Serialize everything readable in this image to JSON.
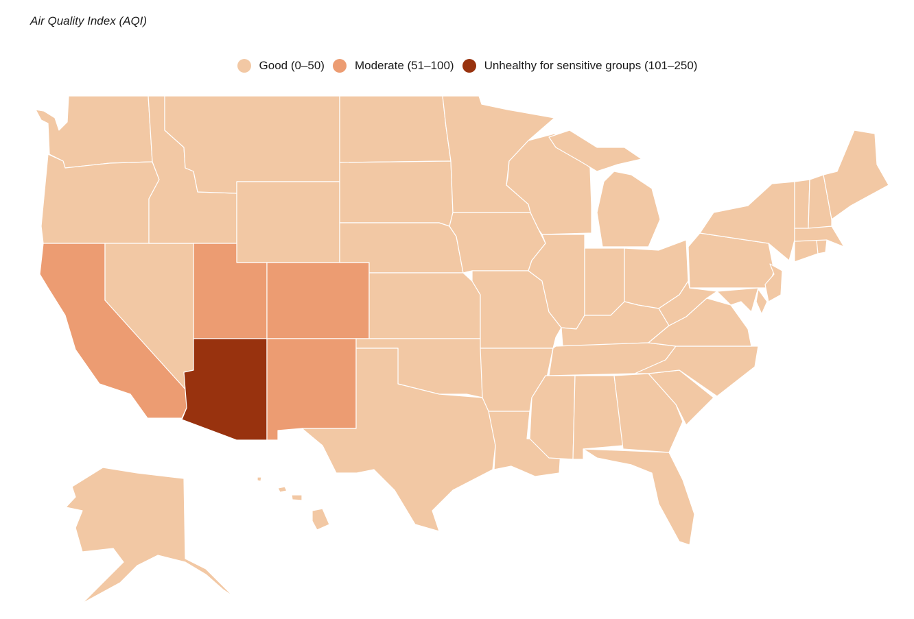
{
  "title": "Air Quality Index (AQI)",
  "legend": [
    {
      "label": "Good (0–50)",
      "color": "#f2c8a4"
    },
    {
      "label": "Moderate (51–100)",
      "color": "#ec9c72"
    },
    {
      "label": "Unhealthy for sensitive groups (101–250)",
      "color": "#98320e"
    }
  ],
  "categories": {
    "good": "Good (0–50)",
    "moderate": "Moderate (51–100)",
    "unhealthy": "Unhealthy for sensitive groups (101–250)"
  },
  "states": {
    "Washington": "good",
    "Oregon": "good",
    "California": "moderate",
    "Nevada": "good",
    "Idaho": "good",
    "Montana": "good",
    "Wyoming": "good",
    "Utah": "moderate",
    "Colorado": "moderate",
    "Arizona": "unhealthy",
    "New Mexico": "moderate",
    "North Dakota": "good",
    "South Dakota": "good",
    "Nebraska": "good",
    "Kansas": "good",
    "Oklahoma": "good",
    "Texas": "good",
    "Minnesota": "good",
    "Iowa": "good",
    "Missouri": "good",
    "Arkansas": "good",
    "Louisiana": "good",
    "Wisconsin": "good",
    "Illinois": "good",
    "Michigan": "good",
    "Indiana": "good",
    "Ohio": "good",
    "Kentucky": "good",
    "Tennessee": "good",
    "Mississippi": "good",
    "Alabama": "good",
    "Georgia": "good",
    "Florida": "good",
    "South Carolina": "good",
    "North Carolina": "good",
    "Virginia": "good",
    "West Virginia": "good",
    "Pennsylvania": "good",
    "New York": "good",
    "Maryland": "good",
    "Delaware": "good",
    "New Jersey": "good",
    "Connecticut": "good",
    "Rhode Island": "good",
    "Massachusetts": "good",
    "Vermont": "good",
    "New Hampshire": "good",
    "Maine": "good",
    "Alaska": "good",
    "Hawaii": "good"
  }
}
